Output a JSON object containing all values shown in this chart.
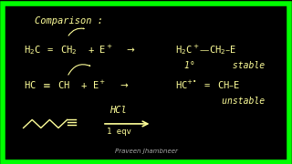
{
  "bg_color": "#000000",
  "border_color": "#00ff00",
  "border_linewidth": 4,
  "text_color": "#ffff99",
  "title": "Comparison :",
  "line1_left": "H₂C ═ CH₂  + E⁺  →",
  "line1_right": "H₂C⁺—CH₂−E",
  "line1_right2": "1°       stable",
  "line2_left": "HC ≡ CH  + E⁺  →",
  "line2_right": "HC⁺⁼ ═ CH−E",
  "line2_right2": "       unstable",
  "line3_left": "∼∼∼∼≡",
  "line3_arrow": "HCl\n1 eqv",
  "watermark": "Praveen Jhambneer",
  "fig_width": 3.2,
  "fig_height": 1.8,
  "dpi": 100
}
